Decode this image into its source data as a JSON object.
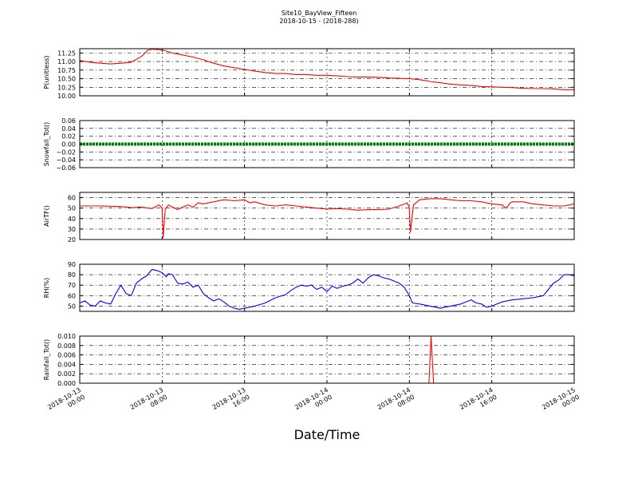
{
  "figure": {
    "title_line1": "Site10_BayView_Fifteen",
    "title_line2": "2018-10-15 - (2018-288)",
    "xlabel": "Date/Time"
  },
  "chart_data": {
    "type": "line",
    "x_axis": {
      "range": [
        "2018-10-13 00:00",
        "2018-10-15 00:00"
      ],
      "tick_labels": [
        [
          "2018-10-13",
          "00:00"
        ],
        [
          "2018-10-13",
          "08:00"
        ],
        [
          "2018-10-13",
          "16:00"
        ],
        [
          "2018-10-14",
          "00:00"
        ],
        [
          "2018-10-14",
          "08:00"
        ],
        [
          "2018-10-14",
          "16:00"
        ],
        [
          "2018-10-15",
          "00:00"
        ]
      ],
      "tick_hours": [
        0,
        8,
        16,
        24,
        32,
        40,
        48
      ]
    },
    "panels": [
      {
        "ylabel": "P(unitless)",
        "ylim": [
          10.0,
          11.375
        ],
        "yticks": [
          "10.00",
          "10.25",
          "10.50",
          "10.75",
          "11.00",
          "11.25"
        ],
        "ytick_values": [
          10.0,
          10.25,
          10.5,
          10.75,
          11.0,
          11.25
        ],
        "color": "#ff0000",
        "grid": true,
        "points": [
          [
            0,
            11.03
          ],
          [
            1,
            10.98
          ],
          [
            2,
            10.95
          ],
          [
            3,
            10.93
          ],
          [
            4,
            10.95
          ],
          [
            5,
            10.98
          ],
          [
            6,
            11.15
          ],
          [
            6.6,
            11.33
          ],
          [
            7,
            11.36
          ],
          [
            8,
            11.34
          ],
          [
            9,
            11.25
          ],
          [
            10,
            11.19
          ],
          [
            11,
            11.13
          ],
          [
            12,
            11.05
          ],
          [
            13,
            10.95
          ],
          [
            14,
            10.87
          ],
          [
            15,
            10.82
          ],
          [
            16,
            10.77
          ],
          [
            17,
            10.72
          ],
          [
            18,
            10.68
          ],
          [
            19,
            10.65
          ],
          [
            20,
            10.65
          ],
          [
            21,
            10.62
          ],
          [
            22,
            10.62
          ],
          [
            23,
            10.6
          ],
          [
            24,
            10.6
          ],
          [
            25,
            10.58
          ],
          [
            26,
            10.56
          ],
          [
            27,
            10.55
          ],
          [
            28,
            10.55
          ],
          [
            29,
            10.54
          ],
          [
            30,
            10.52
          ],
          [
            31,
            10.51
          ],
          [
            32,
            10.5
          ],
          [
            33,
            10.47
          ],
          [
            34,
            10.42
          ],
          [
            35,
            10.38
          ],
          [
            36,
            10.34
          ],
          [
            37,
            10.32
          ],
          [
            38,
            10.3
          ],
          [
            39,
            10.27
          ],
          [
            40,
            10.26
          ],
          [
            41,
            10.25
          ],
          [
            42,
            10.24
          ],
          [
            43,
            10.22
          ],
          [
            44,
            10.21
          ],
          [
            45,
            10.21
          ],
          [
            46,
            10.2
          ],
          [
            47,
            10.18
          ],
          [
            48,
            10.18
          ]
        ]
      },
      {
        "ylabel": "Snowfall_Tot()",
        "ylim": [
          -0.06,
          0.06
        ],
        "yticks": [
          "0.06",
          "0.04",
          "0.02",
          "0.00",
          "−0.02",
          "−0.04",
          "−0.06"
        ],
        "ytick_values": [
          0.06,
          0.04,
          0.02,
          0.0,
          -0.02,
          -0.04,
          -0.06
        ],
        "color": "#008000",
        "grid": true,
        "constant": 0.0
      },
      {
        "ylabel": "AirTF()",
        "ylim": [
          20,
          65
        ],
        "yticks": [
          "20",
          "30",
          "40",
          "50",
          "60"
        ],
        "ytick_values": [
          20,
          30,
          40,
          50,
          60
        ],
        "color": "#ff0000",
        "grid": true,
        "points": [
          [
            0,
            52
          ],
          [
            2,
            52
          ],
          [
            4,
            51.5
          ],
          [
            5,
            50.5
          ],
          [
            6,
            51
          ],
          [
            7,
            49.5
          ],
          [
            7.7,
            53
          ],
          [
            8.0,
            50
          ],
          [
            8.1,
            22
          ],
          [
            8.3,
            49
          ],
          [
            8.6,
            53
          ],
          [
            9,
            51
          ],
          [
            9.5,
            48.5
          ],
          [
            10,
            51
          ],
          [
            10.5,
            53
          ],
          [
            11,
            51
          ],
          [
            11.5,
            55
          ],
          [
            12,
            54
          ],
          [
            13,
            56
          ],
          [
            14,
            58
          ],
          [
            15,
            57
          ],
          [
            16,
            58
          ],
          [
            16.5,
            55
          ],
          [
            17,
            56
          ],
          [
            18,
            53
          ],
          [
            19,
            52
          ],
          [
            20,
            53
          ],
          [
            21,
            52
          ],
          [
            22,
            51
          ],
          [
            23,
            50
          ],
          [
            24,
            49
          ],
          [
            25,
            49.5
          ],
          [
            26,
            49
          ],
          [
            27,
            48
          ],
          [
            28,
            48.5
          ],
          [
            29,
            48.5
          ],
          [
            30,
            49
          ],
          [
            31,
            52
          ],
          [
            31.8,
            55
          ],
          [
            32.0,
            50
          ],
          [
            32.1,
            27
          ],
          [
            32.4,
            53
          ],
          [
            33,
            58
          ],
          [
            34,
            59
          ],
          [
            35,
            59
          ],
          [
            36,
            58
          ],
          [
            37,
            57
          ],
          [
            38,
            57
          ],
          [
            39,
            56
          ],
          [
            40,
            54
          ],
          [
            41,
            53
          ],
          [
            41.4,
            50
          ],
          [
            41.8,
            55
          ],
          [
            42,
            56
          ],
          [
            43,
            56
          ],
          [
            44,
            54
          ],
          [
            45,
            53
          ],
          [
            46,
            52
          ],
          [
            47,
            52
          ],
          [
            48,
            54
          ]
        ]
      },
      {
        "ylabel": "RH(%)",
        "ylim": [
          45,
          90
        ],
        "yticks": [
          "50",
          "60",
          "70",
          "80",
          "90"
        ],
        "ytick_values": [
          50,
          60,
          70,
          80,
          90
        ],
        "color": "#0000ff",
        "grid": true,
        "points": [
          [
            0,
            53
          ],
          [
            0.5,
            55
          ],
          [
            1,
            51
          ],
          [
            1.5,
            50
          ],
          [
            2,
            55
          ],
          [
            2.5,
            53
          ],
          [
            3,
            52
          ],
          [
            3.5,
            62
          ],
          [
            4,
            70
          ],
          [
            4.5,
            62
          ],
          [
            5,
            60
          ],
          [
            5.5,
            72
          ],
          [
            6,
            76
          ],
          [
            6.5,
            79
          ],
          [
            7,
            85
          ],
          [
            7.5,
            84
          ],
          [
            8,
            82
          ],
          [
            8.4,
            78
          ],
          [
            8.6,
            81
          ],
          [
            9,
            80
          ],
          [
            9.5,
            72
          ],
          [
            10,
            71
          ],
          [
            10.5,
            73
          ],
          [
            11,
            68
          ],
          [
            11.5,
            70
          ],
          [
            12,
            62
          ],
          [
            12.5,
            58
          ],
          [
            13,
            55
          ],
          [
            13.5,
            57
          ],
          [
            14,
            54
          ],
          [
            14.5,
            50
          ],
          [
            15,
            48
          ],
          [
            15.5,
            47
          ],
          [
            16,
            48
          ],
          [
            17,
            50
          ],
          [
            18,
            53
          ],
          [
            19,
            58
          ],
          [
            20,
            61
          ],
          [
            20.5,
            65
          ],
          [
            21,
            68
          ],
          [
            21.5,
            70
          ],
          [
            22,
            69
          ],
          [
            22.5,
            70
          ],
          [
            23,
            66
          ],
          [
            23.5,
            68
          ],
          [
            24,
            64
          ],
          [
            24.5,
            69
          ],
          [
            25,
            67
          ],
          [
            25.5,
            69
          ],
          [
            26,
            70
          ],
          [
            26.5,
            72
          ],
          [
            27,
            76
          ],
          [
            27.5,
            72
          ],
          [
            28,
            77
          ],
          [
            28.5,
            80
          ],
          [
            29,
            79
          ],
          [
            29.5,
            77
          ],
          [
            30,
            76
          ],
          [
            31,
            72
          ],
          [
            31.5,
            68
          ],
          [
            32,
            60
          ],
          [
            32.3,
            53
          ],
          [
            33,
            52
          ],
          [
            34,
            50
          ],
          [
            35,
            48
          ],
          [
            36,
            50
          ],
          [
            37,
            52
          ],
          [
            38,
            56
          ],
          [
            38.5,
            53
          ],
          [
            39,
            52
          ],
          [
            39.5,
            49
          ],
          [
            40,
            50
          ],
          [
            40.5,
            52
          ],
          [
            41,
            54
          ],
          [
            42,
            56
          ],
          [
            43,
            57
          ],
          [
            44,
            58
          ],
          [
            45,
            60
          ],
          [
            45.5,
            66
          ],
          [
            46,
            72
          ],
          [
            46.5,
            75
          ],
          [
            47,
            80
          ],
          [
            47.5,
            80
          ],
          [
            48,
            79
          ]
        ]
      },
      {
        "ylabel": "Rainfall_Tot()",
        "ylim": [
          0.0,
          0.01
        ],
        "yticks": [
          "0.000",
          "0.002",
          "0.004",
          "0.006",
          "0.008",
          "0.010"
        ],
        "ytick_values": [
          0.0,
          0.002,
          0.004,
          0.006,
          0.008,
          0.01
        ],
        "color": "#ff0000",
        "grid": true,
        "points": [
          [
            0,
            0
          ],
          [
            33.9,
            0
          ],
          [
            34.1,
            0.01
          ],
          [
            34.35,
            0
          ],
          [
            48,
            0
          ]
        ]
      }
    ]
  }
}
